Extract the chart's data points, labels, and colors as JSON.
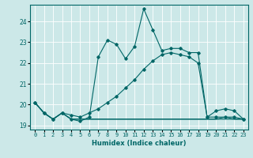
{
  "xlabel": "Humidex (Indice chaleur)",
  "bg_color": "#cce8e8",
  "grid_color": "#ffffff",
  "line_color": "#006666",
  "xlim": [
    -0.5,
    23.5
  ],
  "ylim": [
    18.8,
    24.8
  ],
  "yticks": [
    19,
    20,
    21,
    22,
    23,
    24
  ],
  "xtick_labels": [
    "0",
    "1",
    "2",
    "3",
    "4",
    "5",
    "6",
    "7",
    "8",
    "9",
    "10",
    "11",
    "12",
    "13",
    "14",
    "15",
    "16",
    "17",
    "18",
    "19",
    "20",
    "21",
    "22",
    "23"
  ],
  "series": [
    [
      20.1,
      19.6,
      19.3,
      19.6,
      19.3,
      19.2,
      19.4,
      22.3,
      23.1,
      22.9,
      22.2,
      22.8,
      24.6,
      23.6,
      22.6,
      22.7,
      22.7,
      22.5,
      22.5,
      19.4,
      19.7,
      19.8,
      19.7,
      19.3
    ],
    [
      20.1,
      19.6,
      19.3,
      19.6,
      19.5,
      19.4,
      19.6,
      19.8,
      20.1,
      20.4,
      20.8,
      21.2,
      21.7,
      22.1,
      22.4,
      22.5,
      22.4,
      22.3,
      22.0,
      19.4,
      19.4,
      19.4,
      19.4,
      19.3
    ],
    [
      20.1,
      19.6,
      19.3,
      19.6,
      19.3,
      19.3,
      19.3,
      19.3,
      19.3,
      19.3,
      19.3,
      19.3,
      19.3,
      19.3,
      19.3,
      19.3,
      19.3,
      19.3,
      19.3,
      19.3,
      19.3,
      19.3,
      19.3,
      19.3
    ],
    [
      20.1,
      19.6,
      19.3,
      19.6,
      19.3,
      19.3,
      19.3,
      19.3,
      19.3,
      19.3,
      19.3,
      19.3,
      19.3,
      19.3,
      19.3,
      19.3,
      19.3,
      19.3,
      19.3,
      19.3,
      19.3,
      19.4,
      19.3,
      19.3
    ]
  ],
  "marker_series": [
    0,
    1
  ],
  "marker": "D",
  "markersize": 1.8,
  "linewidth": 0.8,
  "tick_fontsize": 5.0,
  "xlabel_fontsize": 6.0,
  "ytick_fontsize": 5.5
}
